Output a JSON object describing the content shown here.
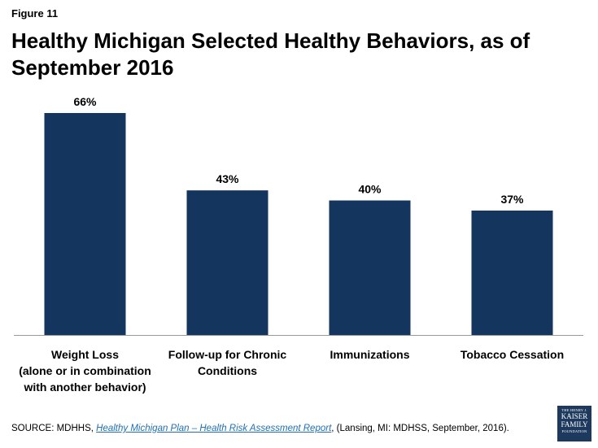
{
  "figure_label": "Figure 11",
  "colors": {
    "bar": "#14365e",
    "axis": "#999999",
    "text": "#000000"
  },
  "source": {
    "prefix": "SOURCE: MDHHS, ",
    "link_text": "Healthy Michigan Plan – Health Risk Assessment Report",
    "suffix": ", (Lansing, MI: MDHSS, September,  2016)."
  },
  "logo": {
    "line1": "THE HENRY J.",
    "line2": "KAISER",
    "line3": "FAMILY",
    "line4": "FOUNDATION"
  },
  "chart_data": {
    "type": "bar",
    "title": "Healthy Michigan Selected Healthy Behaviors, as of September 2016",
    "categories": [
      "Weight Loss\n(alone or in combination\nwith another behavior)",
      "Follow-up for Chronic\nConditions",
      "Immunizations",
      "Tobacco Cessation"
    ],
    "values": [
      66,
      43,
      40,
      37
    ],
    "data_labels": [
      "66%",
      "43%",
      "40%",
      "37%"
    ],
    "xlabel": "",
    "ylabel": "",
    "ylim": [
      0,
      66
    ],
    "grid": false,
    "legend": "none"
  }
}
